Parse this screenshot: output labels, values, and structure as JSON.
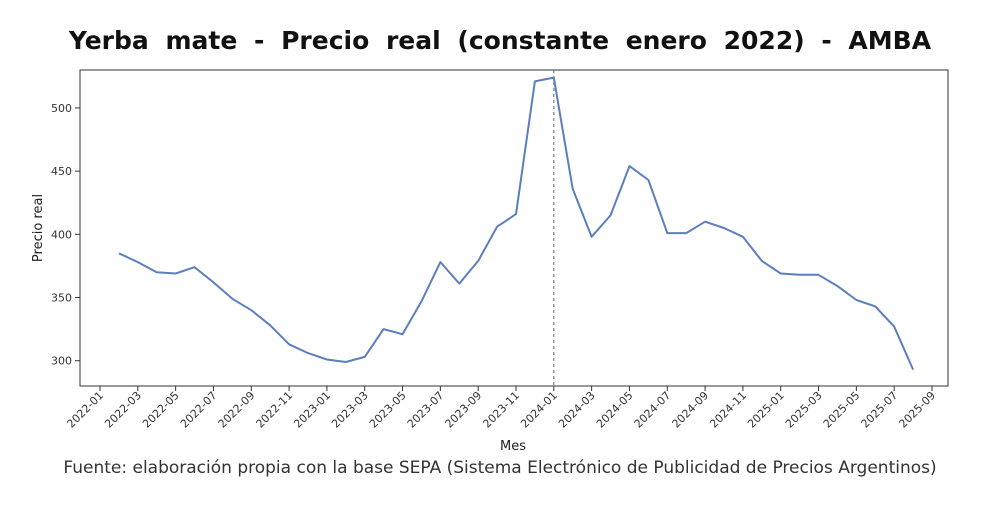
{
  "chart_data": {
    "type": "line",
    "title": "Yerba mate - Precio real (constante enero 2022) - AMBA",
    "xlabel": "Mes",
    "ylabel": "Precio real",
    "source_note": "Fuente: elaboración propia con la base SEPA (Sistema Electrónico de Publicidad de Precios Argentinos)",
    "ylim": [
      280,
      530
    ],
    "yticks": [
      300,
      350,
      400,
      450,
      500
    ],
    "xticks": [
      "2022-01",
      "2022-03",
      "2022-05",
      "2022-07",
      "2022-09",
      "2022-11",
      "2023-01",
      "2023-03",
      "2023-05",
      "2023-07",
      "2023-09",
      "2023-11",
      "2024-01",
      "2024-03",
      "2024-05",
      "2024-07",
      "2024-09",
      "2024-11",
      "2025-01",
      "2025-03",
      "2025-05",
      "2025-07",
      "2025-09"
    ],
    "vline": "2024-01",
    "line_color": "#5b7fbd",
    "series": [
      {
        "name": "Precio real",
        "x": [
          "2022-02",
          "2022-03",
          "2022-04",
          "2022-05",
          "2022-06",
          "2022-07",
          "2022-08",
          "2022-09",
          "2022-10",
          "2022-11",
          "2022-12",
          "2023-01",
          "2023-02",
          "2023-03",
          "2023-04",
          "2023-05",
          "2023-06",
          "2023-07",
          "2023-08",
          "2023-09",
          "2023-10",
          "2023-11",
          "2023-12",
          "2024-01",
          "2024-02",
          "2024-03",
          "2024-04",
          "2024-05",
          "2024-06",
          "2024-07",
          "2024-08",
          "2024-09",
          "2024-10",
          "2024-11",
          "2024-12",
          "2025-01",
          "2025-02",
          "2025-03",
          "2025-04",
          "2025-05",
          "2025-06",
          "2025-07",
          "2025-08"
        ],
        "values": [
          385,
          378,
          370,
          369,
          374,
          362,
          349,
          340,
          328,
          313,
          306,
          301,
          299,
          303,
          325,
          321,
          347,
          378,
          361,
          379,
          406,
          416,
          521,
          524,
          436,
          398,
          415,
          454,
          443,
          401,
          401,
          410,
          405,
          398,
          379,
          369,
          368,
          368,
          359,
          348,
          343,
          327,
          293
        ]
      }
    ]
  }
}
